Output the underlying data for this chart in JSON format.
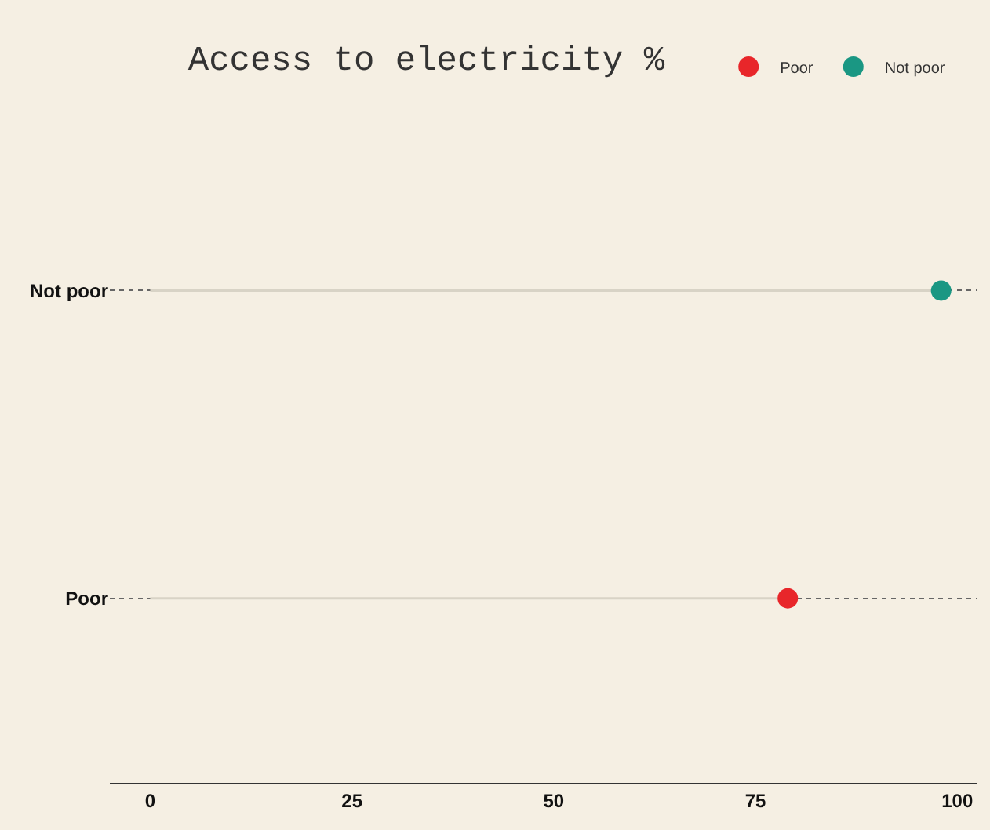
{
  "chart_data": {
    "type": "lollipop",
    "title": "Access to electricity %",
    "orientation": "horizontal",
    "categories": [
      "Not poor",
      "Poor"
    ],
    "series": [
      {
        "name": "Poor",
        "color": "#e8262a",
        "values": [
          null,
          79
        ]
      },
      {
        "name": "Not poor",
        "color": "#1a9783",
        "values": [
          98,
          null
        ]
      }
    ],
    "xlim": [
      -5,
      102.5
    ],
    "xticks": [
      0,
      25,
      50,
      75,
      100
    ],
    "grid": "y",
    "legend": "top right",
    "marker": "circle"
  }
}
